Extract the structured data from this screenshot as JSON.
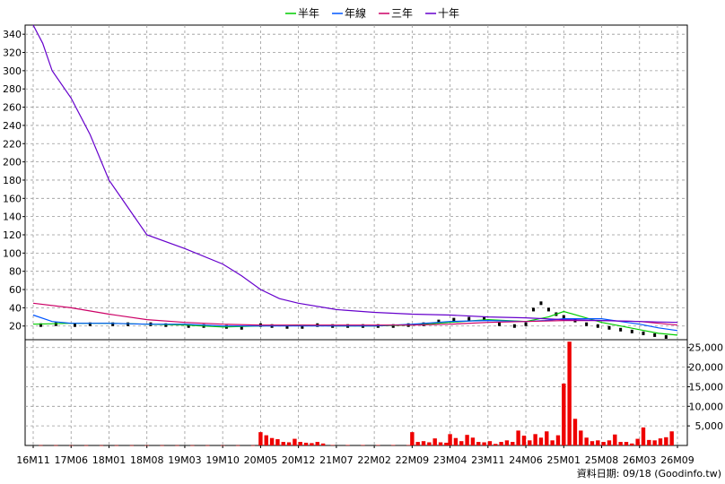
{
  "chart_data": {
    "type": "line",
    "legend": {
      "placement": "top-center",
      "items": [
        {
          "label": "半年",
          "color": "#00cc00"
        },
        {
          "label": "年線",
          "color": "#0055ff"
        },
        {
          "label": "三年",
          "color": "#cc0066"
        },
        {
          "label": "十年",
          "color": "#6600cc"
        }
      ]
    },
    "x_ticks": [
      "16M11",
      "17M06",
      "18M01",
      "18M08",
      "19M03",
      "19M10",
      "20M05",
      "20M12",
      "21M07",
      "22M02",
      "22M09",
      "23M04",
      "23M11",
      "24M06",
      "25M01",
      "25M08",
      "26M03",
      "26M09"
    ],
    "price_axis": {
      "ticks": [
        20,
        40,
        60,
        80,
        100,
        120,
        140,
        160,
        180,
        200,
        220,
        240,
        260,
        280,
        300,
        320,
        340
      ],
      "ylim": [
        5,
        350
      ],
      "grid": true
    },
    "volume_axis": {
      "ticks": [
        "5,000",
        "10,000",
        "15,000",
        "20,000",
        "25,000"
      ],
      "ylim": [
        0,
        27000
      ],
      "grid": true
    },
    "series": [
      {
        "name": "半年",
        "color": "#00cc00",
        "x": [
          0,
          1,
          2,
          3,
          4,
          5,
          6,
          7,
          8,
          9,
          10,
          11,
          12,
          13,
          13.6,
          14,
          14.5,
          15,
          15.5,
          16,
          16.5,
          17
        ],
        "y": [
          22,
          23,
          23,
          22,
          21,
          19,
          20,
          21,
          20,
          20,
          21,
          24,
          27,
          25,
          30,
          36,
          30,
          24,
          20,
          16,
          12,
          10
        ]
      },
      {
        "name": "年線",
        "color": "#0055ff",
        "x": [
          0,
          0.5,
          1,
          2,
          3,
          4,
          5,
          6,
          7,
          8,
          9,
          10,
          11,
          12,
          13,
          13.5,
          14,
          15,
          15.5,
          16,
          16.5,
          17
        ],
        "y": [
          32,
          25,
          23,
          23,
          22,
          22,
          20,
          20,
          20,
          20,
          20,
          22,
          25,
          26,
          25,
          26,
          28,
          28,
          25,
          22,
          18,
          15
        ]
      },
      {
        "name": "三年",
        "color": "#cc0066",
        "x": [
          0,
          1,
          2,
          3,
          4,
          5,
          6,
          7,
          8,
          9,
          10,
          11,
          12,
          13,
          14,
          15,
          16,
          17
        ],
        "y": [
          45,
          40,
          33,
          27,
          24,
          22,
          21,
          21,
          21,
          21,
          21,
          22,
          24,
          25,
          26,
          26,
          25,
          21
        ]
      },
      {
        "name": "十年",
        "color": "#6600cc",
        "x": [
          0,
          0.25,
          0.5,
          1,
          1.5,
          2,
          2.5,
          3,
          4,
          5,
          5.5,
          6,
          6.5,
          7,
          8,
          9,
          10,
          11,
          12,
          13,
          13.5,
          14,
          15,
          16,
          17
        ],
        "y": [
          350,
          330,
          300,
          270,
          230,
          180,
          150,
          120,
          105,
          88,
          75,
          60,
          50,
          45,
          38,
          35,
          33,
          32,
          30,
          29,
          28,
          27,
          26,
          25,
          24
        ]
      }
    ],
    "candles": [
      {
        "x": 0.2,
        "y": 21
      },
      {
        "x": 0.6,
        "y": 22
      },
      {
        "x": 1.1,
        "y": 21
      },
      {
        "x": 1.5,
        "y": 22
      },
      {
        "x": 2.1,
        "y": 22
      },
      {
        "x": 2.5,
        "y": 22
      },
      {
        "x": 3.1,
        "y": 22
      },
      {
        "x": 3.5,
        "y": 21
      },
      {
        "x": 4.1,
        "y": 20
      },
      {
        "x": 4.5,
        "y": 20
      },
      {
        "x": 5.1,
        "y": 19
      },
      {
        "x": 5.5,
        "y": 18
      },
      {
        "x": 6.0,
        "y": 21
      },
      {
        "x": 6.3,
        "y": 20
      },
      {
        "x": 6.7,
        "y": 19
      },
      {
        "x": 7.1,
        "y": 19
      },
      {
        "x": 7.5,
        "y": 21
      },
      {
        "x": 7.9,
        "y": 20
      },
      {
        "x": 8.3,
        "y": 20
      },
      {
        "x": 8.7,
        "y": 20
      },
      {
        "x": 9.1,
        "y": 20
      },
      {
        "x": 9.5,
        "y": 20
      },
      {
        "x": 9.9,
        "y": 21
      },
      {
        "x": 10.3,
        "y": 22
      },
      {
        "x": 10.7,
        "y": 25
      },
      {
        "x": 11.1,
        "y": 27
      },
      {
        "x": 11.5,
        "y": 28
      },
      {
        "x": 11.9,
        "y": 28
      },
      {
        "x": 12.3,
        "y": 22
      },
      {
        "x": 12.7,
        "y": 20
      },
      {
        "x": 13.0,
        "y": 22
      },
      {
        "x": 13.2,
        "y": 38
      },
      {
        "x": 13.4,
        "y": 45
      },
      {
        "x": 13.6,
        "y": 38
      },
      {
        "x": 13.8,
        "y": 33
      },
      {
        "x": 14.0,
        "y": 30
      },
      {
        "x": 14.3,
        "y": 26
      },
      {
        "x": 14.6,
        "y": 22
      },
      {
        "x": 14.9,
        "y": 20
      },
      {
        "x": 15.2,
        "y": 18
      },
      {
        "x": 15.5,
        "y": 16
      },
      {
        "x": 15.8,
        "y": 14
      },
      {
        "x": 16.1,
        "y": 12
      },
      {
        "x": 16.4,
        "y": 10
      },
      {
        "x": 16.7,
        "y": 8
      }
    ],
    "volume": {
      "x": [
        0.2,
        0.6,
        1.0,
        1.4,
        1.8,
        2.2,
        2.6,
        3.0,
        3.4,
        3.8,
        4.2,
        4.6,
        5.0,
        5.4,
        5.8,
        6.0,
        6.15,
        6.3,
        6.45,
        6.6,
        6.75,
        6.9,
        7.05,
        7.2,
        7.35,
        7.5,
        7.65,
        7.9,
        8.3,
        8.7,
        9.1,
        9.5,
        9.9,
        10.0,
        10.15,
        10.3,
        10.45,
        10.6,
        10.75,
        10.9,
        11.0,
        11.15,
        11.3,
        11.45,
        11.6,
        11.75,
        11.9,
        12.05,
        12.2,
        12.35,
        12.5,
        12.65,
        12.8,
        12.95,
        13.1,
        13.25,
        13.4,
        13.55,
        13.7,
        13.85,
        14.0,
        14.15,
        14.3,
        14.45,
        14.6,
        14.75,
        14.9,
        15.05,
        15.2,
        15.35,
        15.5,
        15.65,
        15.8,
        15.95,
        16.1,
        16.25,
        16.4,
        16.55,
        16.7,
        16.85
      ],
      "values": [
        60,
        50,
        40,
        40,
        40,
        40,
        40,
        40,
        40,
        40,
        40,
        40,
        40,
        40,
        40,
        3400,
        2600,
        1900,
        1600,
        900,
        800,
        1700,
        900,
        700,
        600,
        900,
        500,
        100,
        100,
        100,
        100,
        100,
        100,
        3400,
        900,
        1100,
        800,
        1800,
        800,
        700,
        2900,
        1900,
        1100,
        2700,
        2000,
        900,
        800,
        1100,
        400,
        900,
        1300,
        900,
        3800,
        2500,
        1300,
        2900,
        2000,
        3600,
        1300,
        2600,
        15800,
        26500,
        6800,
        3800,
        2000,
        1100,
        1300,
        900,
        1300,
        2800,
        900,
        900,
        500,
        1700,
        4600,
        1400,
        1300,
        1800,
        2100,
        3600
      ]
    },
    "footer": "資料日期: 09/18 (Goodinfo.tw)"
  }
}
